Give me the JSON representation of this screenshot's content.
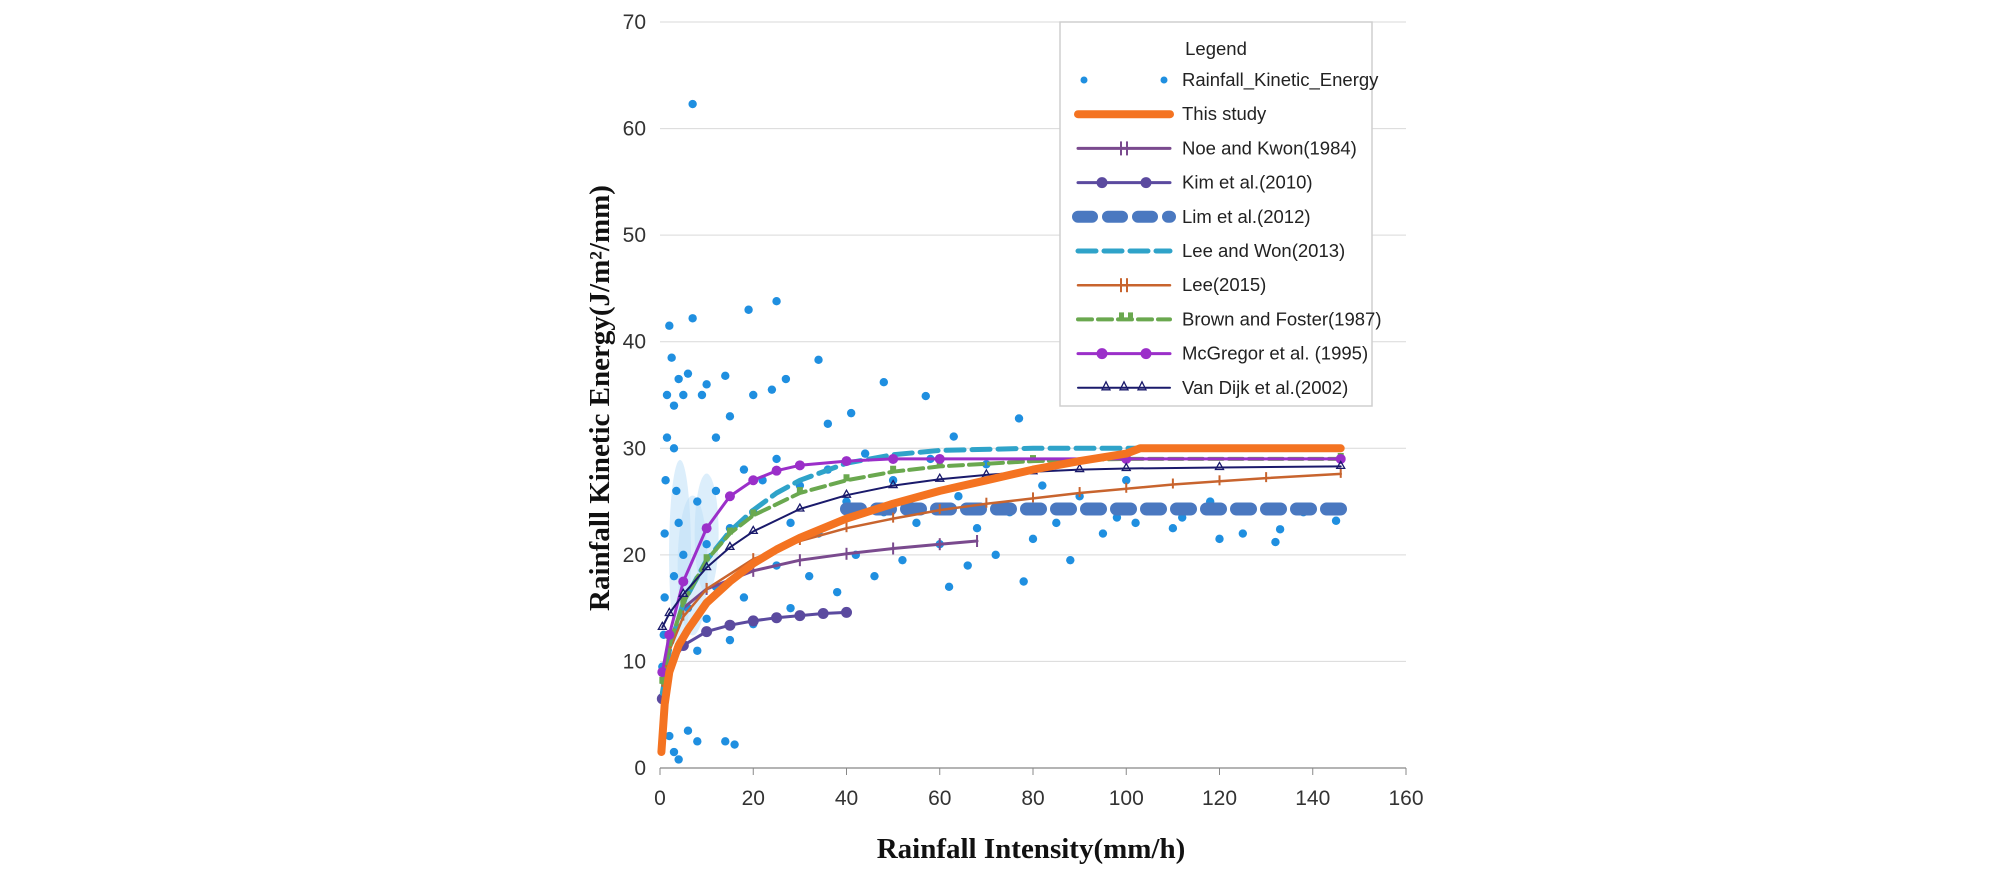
{
  "chart_data": {
    "type": "scatter",
    "title": "",
    "xlabel": "Rainfall Intensity(mm/h)",
    "ylabel": "Rainfall Kinetic Energy(J/m²/mm)",
    "xlim": [
      0,
      160
    ],
    "ylim": [
      0,
      70
    ],
    "x_ticks": [
      "0",
      "20",
      "40",
      "60",
      "80",
      "100",
      "120",
      "140",
      "160"
    ],
    "y_ticks": [
      "0",
      "10",
      "20",
      "30",
      "40",
      "50",
      "60",
      "70"
    ],
    "grid": "horizontal",
    "legend_title": "Legend",
    "legend_position": "top-right",
    "scatter": {
      "name": "Rainfall_Kinetic_Energy",
      "color": "#1f8fe0",
      "points": [
        [
          0.5,
          6.5
        ],
        [
          0.5,
          9.5
        ],
        [
          0.8,
          12.5
        ],
        [
          1.0,
          16.0
        ],
        [
          1.0,
          22.0
        ],
        [
          1.2,
          27.0
        ],
        [
          1.5,
          31.0
        ],
        [
          1.5,
          35.0
        ],
        [
          2.0,
          41.5
        ],
        [
          2.5,
          38.5
        ],
        [
          3.0,
          34.0
        ],
        [
          3.0,
          30.0
        ],
        [
          3.5,
          26.0
        ],
        [
          4.0,
          36.5
        ],
        [
          5.0,
          35.0
        ],
        [
          6.0,
          37.0
        ],
        [
          7.0,
          42.2
        ],
        [
          7.0,
          62.3
        ],
        [
          9.0,
          35.0
        ],
        [
          10.0,
          36.0
        ],
        [
          12.0,
          31.0
        ],
        [
          14.0,
          36.8
        ],
        [
          15.0,
          33.0
        ],
        [
          19.0,
          43.0
        ],
        [
          20.0,
          35.0
        ],
        [
          24.0,
          35.5
        ],
        [
          25.0,
          43.8
        ],
        [
          27.0,
          36.5
        ],
        [
          34.0,
          38.3
        ],
        [
          36.0,
          32.3
        ],
        [
          41.0,
          33.3
        ],
        [
          48.0,
          36.2
        ],
        [
          57.0,
          34.9
        ],
        [
          63.0,
          31.1
        ],
        [
          77.0,
          32.8
        ],
        [
          92.0,
          24.5
        ],
        [
          98.0,
          23.5
        ],
        [
          102.0,
          23.0
        ],
        [
          110.0,
          22.5
        ],
        [
          120.0,
          21.5
        ],
        [
          132.0,
          21.2
        ],
        [
          133.0,
          22.4
        ],
        [
          145.0,
          23.2
        ],
        [
          2.0,
          3.0
        ],
        [
          3.0,
          1.5
        ],
        [
          4.0,
          0.8
        ],
        [
          6.0,
          3.5
        ],
        [
          8.0,
          2.5
        ],
        [
          14.0,
          2.5
        ],
        [
          16.0,
          2.2
        ],
        [
          3.0,
          18.0
        ],
        [
          4.0,
          23.0
        ],
        [
          5.0,
          20.0
        ],
        [
          6.0,
          15.0
        ],
        [
          8.0,
          25.0
        ],
        [
          8.0,
          11.0
        ],
        [
          10.0,
          21.0
        ],
        [
          10.0,
          14.0
        ],
        [
          12.0,
          26.0
        ],
        [
          12.0,
          17.0
        ],
        [
          15.0,
          22.5
        ],
        [
          15.0,
          12.0
        ],
        [
          18.0,
          28.0
        ],
        [
          18.0,
          16.0
        ],
        [
          20.0,
          24.0
        ],
        [
          20.0,
          13.5
        ],
        [
          22.0,
          27.0
        ],
        [
          25.0,
          19.0
        ],
        [
          25.0,
          29.0
        ],
        [
          28.0,
          23.0
        ],
        [
          28.0,
          15.0
        ],
        [
          30.0,
          26.5
        ],
        [
          32.0,
          18.0
        ],
        [
          34.0,
          22.0
        ],
        [
          36.0,
          28.0
        ],
        [
          38.0,
          16.5
        ],
        [
          40.0,
          25.0
        ],
        [
          42.0,
          20.0
        ],
        [
          44.0,
          29.5
        ],
        [
          46.0,
          18.0
        ],
        [
          48.0,
          24.0
        ],
        [
          50.0,
          27.0
        ],
        [
          52.0,
          19.5
        ],
        [
          55.0,
          23.0
        ],
        [
          58.0,
          29.0
        ],
        [
          60.0,
          21.0
        ],
        [
          62.0,
          17.0
        ],
        [
          64.0,
          25.5
        ],
        [
          66.0,
          19.0
        ],
        [
          68.0,
          22.5
        ],
        [
          70.0,
          28.5
        ],
        [
          72.0,
          20.0
        ],
        [
          75.0,
          24.0
        ],
        [
          78.0,
          17.5
        ],
        [
          80.0,
          21.5
        ],
        [
          82.0,
          26.5
        ],
        [
          85.0,
          23.0
        ],
        [
          88.0,
          19.5
        ],
        [
          90.0,
          25.5
        ],
        [
          95.0,
          22.0
        ],
        [
          100.0,
          27.0
        ],
        [
          105.0,
          24.5
        ],
        [
          112.0,
          23.5
        ],
        [
          118.0,
          25.0
        ],
        [
          125.0,
          22.0
        ],
        [
          138.0,
          24.0
        ]
      ]
    },
    "series": [
      {
        "name": "This study",
        "color": "#f47321",
        "style": "thick",
        "points": [
          [
            0.3,
            1.5
          ],
          [
            1,
            6
          ],
          [
            2,
            9
          ],
          [
            4,
            11.5
          ],
          [
            6,
            13
          ],
          [
            10,
            15.5
          ],
          [
            15,
            17.5
          ],
          [
            20,
            19.2
          ],
          [
            25,
            20.5
          ],
          [
            30,
            21.6
          ],
          [
            40,
            23.4
          ],
          [
            50,
            24.8
          ],
          [
            60,
            26.0
          ],
          [
            70,
            27.0
          ],
          [
            80,
            28.0
          ],
          [
            90,
            28.8
          ],
          [
            100,
            29.5
          ],
          [
            103,
            30
          ],
          [
            120,
            30
          ],
          [
            146,
            30
          ]
        ]
      },
      {
        "name": "Noe and Kwon(1984)",
        "color": "#7a4a8e",
        "style": "plus-marker",
        "points": [
          [
            0.5,
            8.5
          ],
          [
            2,
            12
          ],
          [
            5,
            15.0
          ],
          [
            10,
            16.8
          ],
          [
            20,
            18.5
          ],
          [
            30,
            19.5
          ],
          [
            40,
            20.1
          ],
          [
            50,
            20.6
          ],
          [
            60,
            21.0
          ],
          [
            68,
            21.3
          ]
        ]
      },
      {
        "name": "Kim et al.(2010)",
        "color": "#5b4a9f",
        "style": "circle-marker",
        "points": [
          [
            0.5,
            6.5
          ],
          [
            2,
            9.5
          ],
          [
            5,
            11.5
          ],
          [
            10,
            12.8
          ],
          [
            15,
            13.4
          ],
          [
            20,
            13.8
          ],
          [
            25,
            14.1
          ],
          [
            30,
            14.3
          ],
          [
            35,
            14.5
          ],
          [
            40,
            14.6
          ]
        ]
      },
      {
        "name": "Lim et al.(2012)",
        "color": "#4a78c0",
        "style": "thick-dash",
        "points": [
          [
            40,
            24.3
          ],
          [
            60,
            24.3
          ],
          [
            80,
            24.3
          ],
          [
            100,
            24.3
          ],
          [
            120,
            24.3
          ],
          [
            146,
            24.3
          ]
        ]
      },
      {
        "name": "Lee and Won(2013)",
        "color": "#2fa3c9",
        "style": "dash",
        "points": [
          [
            0.5,
            7
          ],
          [
            2,
            11
          ],
          [
            5,
            15.5
          ],
          [
            10,
            19.5
          ],
          [
            15,
            22.2
          ],
          [
            20,
            24.2
          ],
          [
            25,
            25.8
          ],
          [
            30,
            27.0
          ],
          [
            40,
            28.6
          ],
          [
            50,
            29.4
          ],
          [
            60,
            29.8
          ],
          [
            80,
            30.0
          ],
          [
            100,
            30.0
          ],
          [
            146,
            30.0
          ]
        ]
      },
      {
        "name": "Lee(2015)",
        "color": "#c8642e",
        "style": "tick-marker",
        "points": [
          [
            0.5,
            8
          ],
          [
            2,
            11
          ],
          [
            5,
            14.2
          ],
          [
            10,
            16.8
          ],
          [
            20,
            19.6
          ],
          [
            30,
            21.3
          ],
          [
            40,
            22.5
          ],
          [
            50,
            23.4
          ],
          [
            60,
            24.2
          ],
          [
            70,
            24.8
          ],
          [
            80,
            25.3
          ],
          [
            90,
            25.8
          ],
          [
            100,
            26.2
          ],
          [
            110,
            26.6
          ],
          [
            120,
            26.9
          ],
          [
            130,
            27.2
          ],
          [
            146,
            27.6
          ]
        ]
      },
      {
        "name": "Brown and Foster(1987)",
        "color": "#6aa84f",
        "style": "dash-marker",
        "points": [
          [
            0.5,
            8
          ],
          [
            2,
            11.5
          ],
          [
            5,
            15.5
          ],
          [
            10,
            19.5
          ],
          [
            15,
            22.0
          ],
          [
            20,
            23.7
          ],
          [
            30,
            25.8
          ],
          [
            40,
            27.0
          ],
          [
            50,
            27.8
          ],
          [
            60,
            28.3
          ],
          [
            80,
            28.8
          ],
          [
            100,
            29.0
          ],
          [
            146,
            29.0
          ]
        ]
      },
      {
        "name": "McGregor et al. (1995)",
        "color": "#9b2fc9",
        "style": "semicircle-marker",
        "points": [
          [
            0.5,
            9
          ],
          [
            2,
            12.5
          ],
          [
            5,
            17.5
          ],
          [
            10,
            22.5
          ],
          [
            15,
            25.5
          ],
          [
            20,
            27.0
          ],
          [
            25,
            27.9
          ],
          [
            30,
            28.4
          ],
          [
            40,
            28.8
          ],
          [
            50,
            29.0
          ],
          [
            60,
            29.0
          ],
          [
            100,
            29.0
          ],
          [
            146,
            29.0
          ]
        ]
      },
      {
        "name": "Van Dijk et al.(2002)",
        "color": "#1a1a6b",
        "style": "triangle-marker",
        "points": [
          [
            0.5,
            13.2
          ],
          [
            2,
            14.5
          ],
          [
            5,
            16.3
          ],
          [
            10,
            18.8
          ],
          [
            15,
            20.7
          ],
          [
            20,
            22.2
          ],
          [
            30,
            24.3
          ],
          [
            40,
            25.6
          ],
          [
            50,
            26.5
          ],
          [
            60,
            27.1
          ],
          [
            70,
            27.5
          ],
          [
            80,
            27.8
          ],
          [
            90,
            28.0
          ],
          [
            100,
            28.1
          ],
          [
            120,
            28.2
          ],
          [
            146,
            28.3
          ]
        ]
      }
    ]
  }
}
